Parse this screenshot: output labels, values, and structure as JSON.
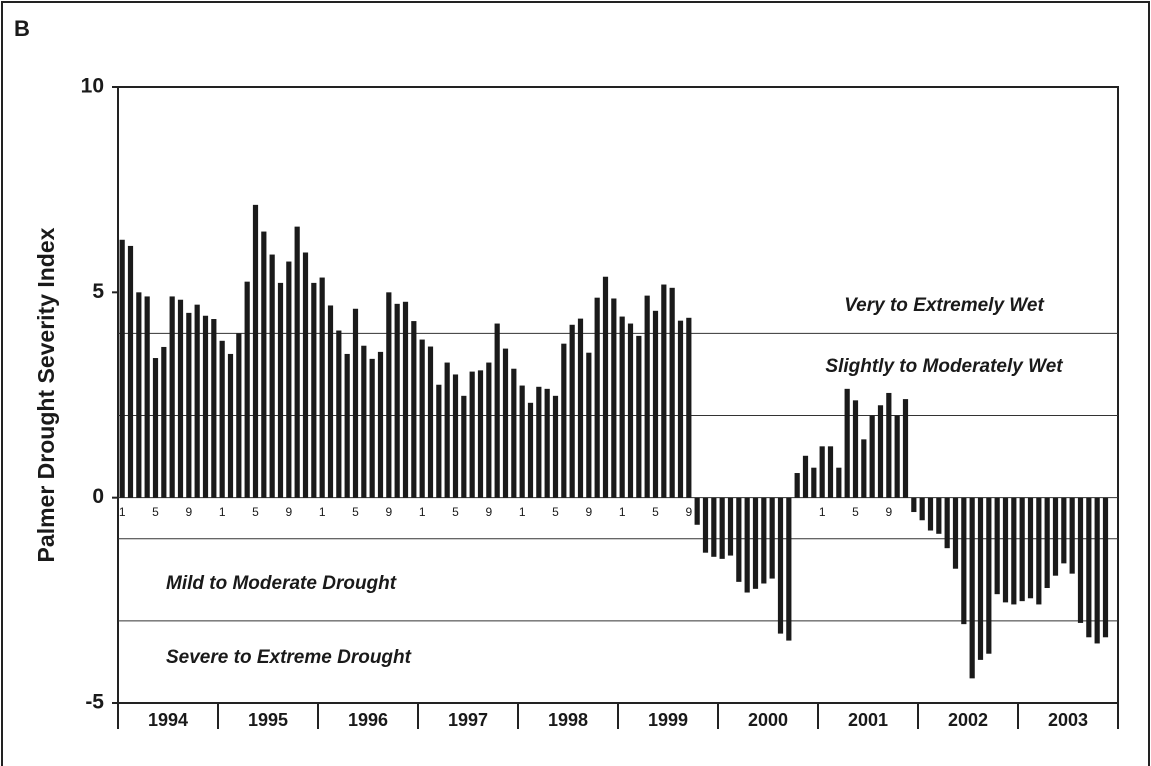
{
  "chart_data": {
    "type": "bar",
    "panel_label": "B",
    "ylabel": "Palmer Drought Severity Index",
    "ylim": [
      -5,
      10
    ],
    "yticks": [
      -5,
      0,
      5,
      10
    ],
    "reference_lines": [
      4,
      2,
      0,
      -1,
      -3
    ],
    "annotations": [
      "Very to Extremely Wet",
      "Slightly to Moderately Wet",
      "Mild to Moderate Drought",
      "Severe to Extreme Drought"
    ],
    "year_labels": [
      "1994",
      "1995",
      "1996",
      "1997",
      "1998",
      "1999",
      "2000",
      "2001",
      "2002",
      "2003"
    ],
    "color": "#1a1a1a",
    "categories": [
      "1",
      null,
      null,
      null,
      "5",
      null,
      null,
      null,
      "9",
      null,
      null,
      null,
      "1",
      null,
      null,
      null,
      "5",
      null,
      null,
      null,
      "9",
      null,
      null,
      null,
      "1",
      null,
      null,
      null,
      "5",
      null,
      null,
      null,
      "9",
      null,
      null,
      null,
      "1",
      null,
      null,
      null,
      "5",
      null,
      null,
      null,
      "9",
      null,
      null,
      null,
      "1",
      null,
      null,
      null,
      "5",
      null,
      null,
      null,
      "9",
      null,
      null,
      null,
      "1",
      null,
      null,
      null,
      "5",
      null,
      null,
      null,
      "9",
      null,
      null,
      null,
      null,
      null,
      null,
      null,
      null,
      null,
      null,
      null,
      null,
      null,
      null,
      null,
      "1",
      null,
      null,
      null,
      "5",
      null,
      null,
      null,
      "9",
      null,
      null,
      null,
      null,
      null,
      null,
      null,
      null,
      null,
      null,
      null,
      null,
      null,
      null,
      null,
      null,
      null,
      null,
      null,
      null,
      null,
      null,
      null,
      null,
      null,
      null,
      null
    ],
    "values": [
      6.28,
      6.13,
      5.0,
      4.9,
      3.4,
      3.67,
      4.9,
      4.82,
      4.5,
      4.7,
      4.43,
      4.35,
      3.82,
      3.5,
      4.0,
      5.26,
      7.13,
      6.48,
      5.92,
      5.23,
      5.75,
      6.6,
      5.97,
      5.23,
      5.36,
      4.68,
      4.07,
      3.5,
      4.6,
      3.7,
      3.38,
      3.55,
      5.0,
      4.72,
      4.77,
      4.3,
      3.85,
      3.68,
      2.75,
      3.29,
      3.0,
      2.48,
      3.07,
      3.1,
      3.29,
      4.24,
      3.63,
      3.14,
      2.73,
      2.31,
      2.7,
      2.65,
      2.48,
      3.75,
      4.21,
      4.36,
      3.53,
      4.87,
      5.38,
      4.85,
      4.41,
      4.24,
      3.94,
      4.92,
      4.55,
      5.19,
      5.11,
      4.31,
      4.38,
      -0.66,
      -1.34,
      -1.44,
      -1.49,
      -1.41,
      -2.05,
      -2.31,
      -2.22,
      -2.09,
      -1.97,
      -3.31,
      -3.48,
      0.6,
      1.02,
      0.73,
      1.25,
      1.25,
      0.73,
      2.65,
      2.37,
      1.42,
      2.0,
      2.25,
      2.55,
      2.0,
      2.4,
      -0.35,
      -0.55,
      -0.8,
      -0.88,
      -1.23,
      -1.73,
      -3.08,
      -4.4,
      -3.95,
      -3.8,
      -2.35,
      -2.55,
      -2.6,
      -2.52,
      -2.45,
      -2.6,
      -2.2,
      -1.9,
      -1.6,
      -1.85,
      -3.05,
      -3.4,
      -3.55,
      -3.4,
      null
    ]
  }
}
